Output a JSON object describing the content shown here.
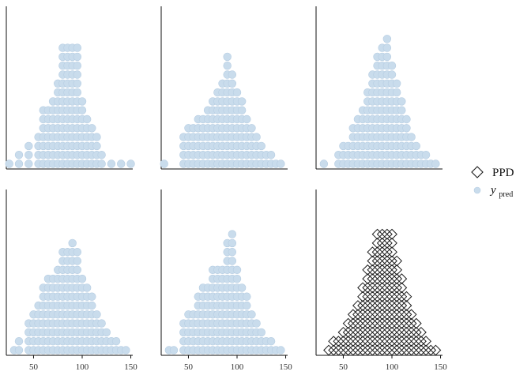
{
  "chart_data": {
    "type": "dotplot",
    "grid": false,
    "legend_position": "right",
    "xlim": [
      22,
      152
    ],
    "x_ticks": [
      50,
      100,
      150
    ],
    "x_tick_labels": [
      "50",
      "100",
      "150"
    ],
    "bin_width": 5,
    "legend": [
      {
        "key": "ppd",
        "label": "PPD",
        "marker": "open-diamond"
      },
      {
        "key": "ypred",
        "label_main": "y",
        "label_sub": "pred",
        "marker": "filled-circle"
      }
    ],
    "colors": {
      "ypred_fill": "#c9dcec",
      "ypred_stroke": "#b6cde2",
      "ppd_stroke": "#1b1b1b",
      "axis": "#111111",
      "tick_text": "#333333"
    },
    "panels": [
      {
        "series": "ypred",
        "x": [
          25,
          35,
          45,
          55,
          60,
          65,
          70,
          75,
          80,
          85,
          90,
          95,
          100,
          105,
          110,
          115,
          120,
          130,
          140,
          150
        ],
        "counts": [
          1,
          2,
          3,
          4,
          7,
          7,
          8,
          10,
          14,
          14,
          14,
          14,
          8,
          6,
          5,
          4,
          2,
          1,
          1,
          1
        ]
      },
      {
        "series": "ypred",
        "x": [
          25,
          45,
          50,
          55,
          60,
          65,
          70,
          75,
          80,
          85,
          90,
          95,
          100,
          105,
          110,
          115,
          120,
          125,
          130,
          135,
          140,
          145
        ],
        "counts": [
          1,
          4,
          5,
          5,
          6,
          6,
          7,
          8,
          9,
          10,
          13,
          11,
          9,
          8,
          6,
          5,
          4,
          3,
          2,
          2,
          1,
          1
        ]
      },
      {
        "series": "ypred",
        "x": [
          30,
          45,
          50,
          55,
          60,
          65,
          70,
          75,
          80,
          85,
          90,
          95,
          100,
          105,
          110,
          115,
          120,
          125,
          130,
          135,
          140,
          145
        ],
        "counts": [
          1,
          2,
          3,
          3,
          5,
          6,
          7,
          9,
          11,
          13,
          14,
          15,
          12,
          10,
          8,
          6,
          4,
          3,
          2,
          2,
          1,
          1
        ]
      },
      {
        "series": "ypred",
        "x": [
          30,
          35,
          45,
          50,
          55,
          60,
          65,
          70,
          75,
          80,
          85,
          90,
          95,
          100,
          105,
          110,
          115,
          120,
          125,
          130,
          135,
          140,
          145
        ],
        "counts": [
          1,
          2,
          4,
          5,
          6,
          8,
          9,
          9,
          10,
          12,
          12,
          13,
          12,
          9,
          8,
          7,
          5,
          4,
          3,
          2,
          2,
          1,
          1
        ]
      },
      {
        "series": "ypred",
        "x": [
          30,
          35,
          45,
          50,
          55,
          60,
          65,
          70,
          75,
          80,
          85,
          90,
          95,
          100,
          105,
          110,
          115,
          120,
          125,
          130,
          135,
          140,
          145
        ],
        "counts": [
          1,
          1,
          4,
          5,
          5,
          7,
          8,
          8,
          10,
          10,
          10,
          13,
          14,
          10,
          8,
          7,
          5,
          4,
          3,
          2,
          2,
          1,
          1
        ]
      },
      {
        "series": "ppd",
        "x": [
          35,
          40,
          45,
          50,
          55,
          60,
          65,
          70,
          75,
          80,
          85,
          90,
          95,
          100,
          105,
          110,
          115,
          120,
          125,
          130,
          135,
          140,
          145
        ],
        "counts": [
          1,
          2,
          2,
          3,
          4,
          5,
          6,
          8,
          10,
          12,
          14,
          14,
          14,
          14,
          11,
          9,
          7,
          5,
          4,
          3,
          2,
          1,
          1
        ]
      }
    ]
  }
}
